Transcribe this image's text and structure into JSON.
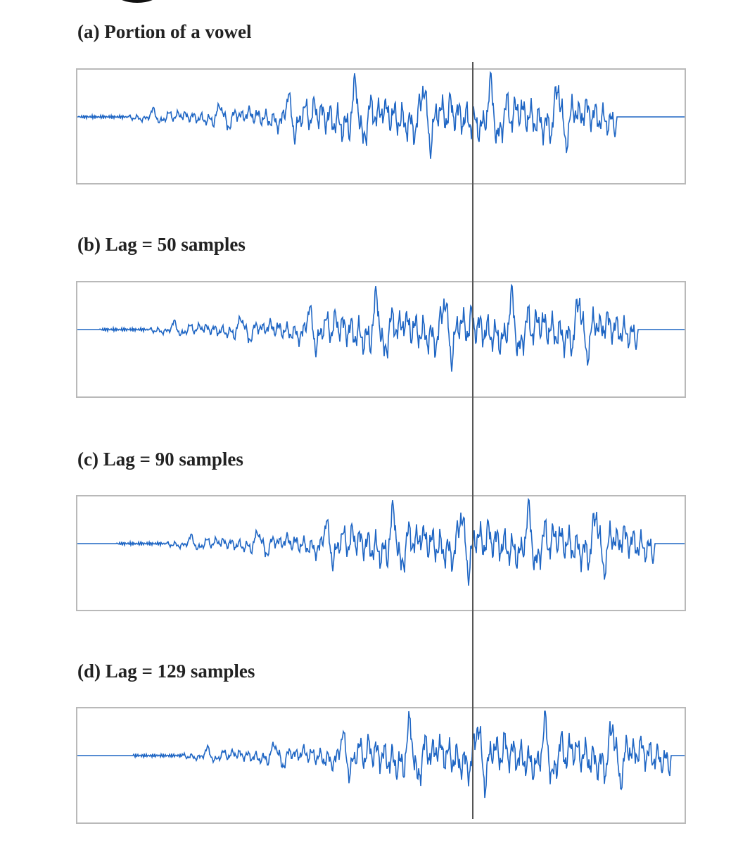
{
  "panels": [
    {
      "id": "a",
      "title": "(a) Portion of a vowel",
      "lag": 0
    },
    {
      "id": "b",
      "title": "(b) Lag = 50 samples",
      "lag": 50
    },
    {
      "id": "c",
      "title": "(c) Lag = 90 samples",
      "lag": 90
    },
    {
      "id": "d",
      "title": "(d) Lag = 129 samples",
      "lag": 129
    }
  ],
  "colors": {
    "waveform": "#1f66c4",
    "frame": "#b9b9b9",
    "guide_line": "#555555"
  }
}
